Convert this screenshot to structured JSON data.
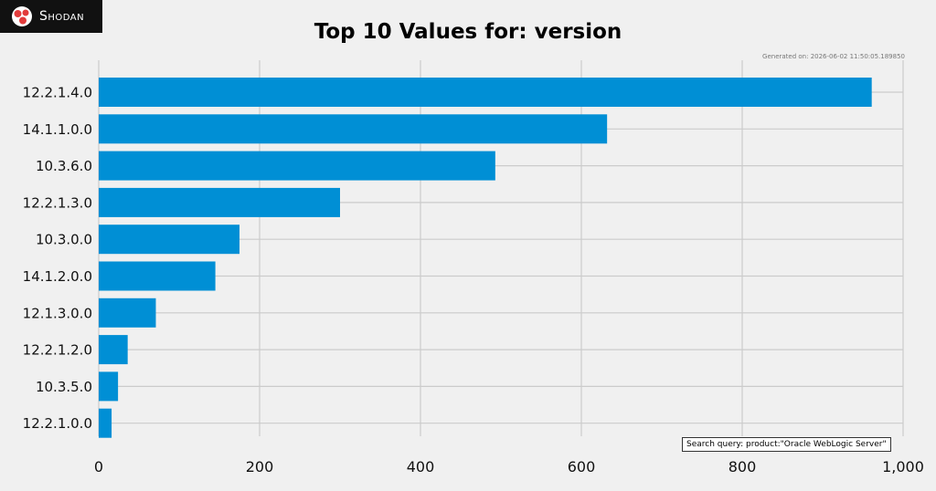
{
  "brand": {
    "name": "Shodan",
    "logo_icon": "shodan-logo-icon"
  },
  "footer": {
    "generated_on": "Generated on: 2026-06-02 11:50:05.189850",
    "search_query": "Search query: product:\"Oracle WebLogic Server\""
  },
  "chart_data": {
    "type": "bar",
    "orientation": "horizontal",
    "title": "Top 10 Values for: version",
    "categories": [
      "12.2.1.4.0",
      "14.1.1.0.0",
      "10.3.6.0",
      "12.2.1.3.0",
      "10.3.0.0",
      "14.1.2.0.0",
      "12.1.3.0.0",
      "12.2.1.2.0",
      "10.3.5.0",
      "12.2.1.0.0"
    ],
    "values": [
      961,
      632,
      493,
      300,
      175,
      145,
      71,
      36,
      24,
      16
    ],
    "xlim": [
      0,
      1000
    ],
    "xticks": [
      0,
      200,
      400,
      600,
      800,
      1000
    ],
    "xtick_labels": [
      "0",
      "200",
      "400",
      "600",
      "800",
      "1,000"
    ],
    "grid": true,
    "bar_color": "#008fd5",
    "grid_color": "#cbcbcb"
  }
}
